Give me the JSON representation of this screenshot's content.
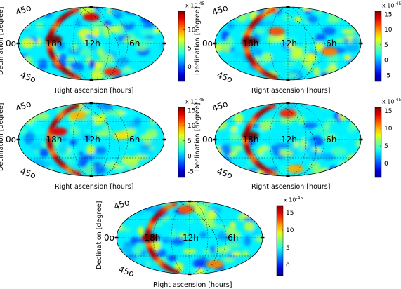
{
  "chart_data": [
    {
      "type": "heatmap",
      "projection": "mollweide",
      "xlabel": "Right ascension [hours]",
      "ylabel": "Declination [degree]",
      "map_labels": {
        "dec_top": "45o",
        "dec_mid": "0o",
        "dec_bot": "45o",
        "ra_left": "18h",
        "ra_mid": "12h",
        "ra_right": "6h"
      },
      "colorbar": {
        "multiplier": "x 10",
        "exponent": "-45",
        "ticks": [
          "10",
          "5",
          "0"
        ],
        "tick_values": [
          10,
          5,
          0
        ],
        "range": [
          -4,
          15
        ],
        "colormap": "jet"
      },
      "hotspots": [
        {
          "ra": 18.2,
          "dec": 10,
          "level": 1.0
        },
        {
          "ra": 12,
          "dec": 65,
          "level": 0.9
        },
        {
          "ra": 6.5,
          "dec": -70,
          "level": 0.85
        }
      ]
    },
    {
      "type": "heatmap",
      "projection": "mollweide",
      "xlabel": "Right ascension [hours]",
      "ylabel": "Declination [degree]",
      "map_labels": {
        "dec_top": "45o",
        "dec_mid": "0o",
        "dec_bot": "45o",
        "ra_left": "18h",
        "ra_mid": "12h",
        "ra_right": "6h"
      },
      "colorbar": {
        "multiplier": "x 10",
        "exponent": "-45",
        "ticks": [
          "15",
          "10",
          "5",
          "0",
          "-5"
        ],
        "tick_values": [
          15,
          10,
          5,
          0,
          -5
        ],
        "range": [
          -7,
          16
        ],
        "colormap": "jet"
      },
      "hotspots": [
        {
          "ra": 18.2,
          "dec": 5,
          "level": 1.0
        },
        {
          "ra": 14,
          "dec": 30,
          "level": 0.8
        },
        {
          "ra": 5,
          "dec": -20,
          "level": 0.75
        }
      ]
    },
    {
      "type": "heatmap",
      "projection": "mollweide",
      "xlabel": "Right ascension [hours]",
      "ylabel": "Declination [degree]",
      "map_labels": {
        "dec_top": "45o",
        "dec_mid": "0o",
        "dec_bot": "45o",
        "ra_left": "18h",
        "ra_mid": "12h",
        "ra_right": "6h"
      },
      "colorbar": {
        "multiplier": "x 10",
        "exponent": "-45",
        "ticks": [
          "15",
          "10",
          "5",
          "0",
          "-5"
        ],
        "tick_values": [
          15,
          10,
          5,
          0,
          -5
        ],
        "range": [
          -7,
          16
        ],
        "colormap": "jet"
      },
      "hotspots": [
        {
          "ra": 17.5,
          "dec": 20,
          "level": 0.9
        },
        {
          "ra": 15,
          "dec": 60,
          "level": 0.7
        },
        {
          "ra": 7,
          "dec": 10,
          "level": 0.65
        }
      ]
    },
    {
      "type": "heatmap",
      "projection": "mollweide",
      "xlabel": "Right ascension [hours]",
      "ylabel": "Declination [degree]",
      "map_labels": {
        "dec_top": "45o",
        "dec_mid": "0o",
        "dec_bot": "45o",
        "ra_left": "18h",
        "ra_mid": "12h",
        "ra_right": "6h"
      },
      "colorbar": {
        "multiplier": "x 10",
        "exponent": "-45",
        "ticks": [
          "15",
          "10",
          "5",
          "0"
        ],
        "tick_values": [
          15,
          10,
          5,
          0
        ],
        "range": [
          -4,
          16
        ],
        "colormap": "jet"
      },
      "hotspots": [
        {
          "ra": 18.2,
          "dec": 10,
          "level": 1.0
        },
        {
          "ra": 12,
          "dec": 65,
          "level": 0.85
        },
        {
          "ra": 10,
          "dec": -72,
          "level": 0.7
        }
      ]
    },
    {
      "type": "heatmap",
      "projection": "mollweide",
      "xlabel": "Right ascension [hours]",
      "ylabel": "Declination [degree]",
      "map_labels": {
        "dec_top": "45o",
        "dec_mid": "0o",
        "dec_bot": "45o",
        "ra_left": "18h",
        "ra_mid": "12h",
        "ra_right": "6h"
      },
      "colorbar": {
        "multiplier": "x 10",
        "exponent": "-45",
        "ticks": [
          "15",
          "10",
          "5",
          "0"
        ],
        "tick_values": [
          15,
          10,
          5,
          0
        ],
        "range": [
          -3,
          17
        ],
        "colormap": "jet"
      },
      "hotspots": [
        {
          "ra": 18.5,
          "dec": 0,
          "level": 1.0
        },
        {
          "ra": 13,
          "dec": 70,
          "level": 0.8
        },
        {
          "ra": 6,
          "dec": -65,
          "level": 0.75
        }
      ]
    }
  ]
}
